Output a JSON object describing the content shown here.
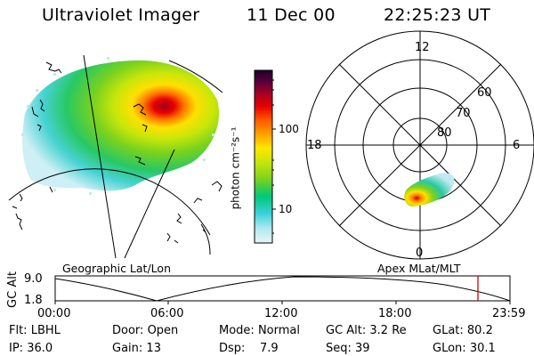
{
  "header": {
    "instrument": "Ultraviolet Imager",
    "date": "11 Dec 00",
    "time": "22:25:23 UT"
  },
  "panels": {
    "geographic_label": "Geographic Lat/Lon",
    "apex_label": "Apex MLat/MLT"
  },
  "polar_plot": {
    "mlt_labels": [
      "12",
      "18",
      "6",
      "0"
    ],
    "lat_labels": [
      "60",
      "70",
      "80"
    ]
  },
  "colorbar": {
    "unit_label": "photon cm⁻²s⁻¹",
    "tick_labels": [
      "100",
      "10"
    ],
    "colors": [
      "#e8f4f8",
      "#b4eaf0",
      "#3ad2dc",
      "#00c878",
      "#7ad21e",
      "#c8e60a",
      "#ffe600",
      "#ffa000",
      "#ff5a00",
      "#e60000",
      "#a00028",
      "#50003c",
      "#1e0028"
    ]
  },
  "altitude_track": {
    "ylabel": "GC Alt",
    "y_ticks": [
      "9.0",
      "1.8"
    ],
    "x_ticks": [
      "00:00",
      "06:00",
      "12:00",
      "18:00",
      "23:59"
    ],
    "current_marker_color": "#d00000"
  },
  "status": {
    "row1": [
      {
        "label": "Flt:",
        "value": "LBHL"
      },
      {
        "label": "Door:",
        "value": "Open"
      },
      {
        "label": "Mode:",
        "value": "Normal"
      },
      {
        "label": "GC Alt:",
        "value": "3.2 Re"
      },
      {
        "label": "GLat:",
        "value": "80.2"
      }
    ],
    "row2": [
      {
        "label": "IP:",
        "value": "36.0"
      },
      {
        "label": "Gain:",
        "value": "13"
      },
      {
        "label": "Dsp:",
        "value": "7.9"
      },
      {
        "label": "Seq:",
        "value": "39"
      },
      {
        "label": "GLon:",
        "value": "30.1"
      }
    ]
  }
}
